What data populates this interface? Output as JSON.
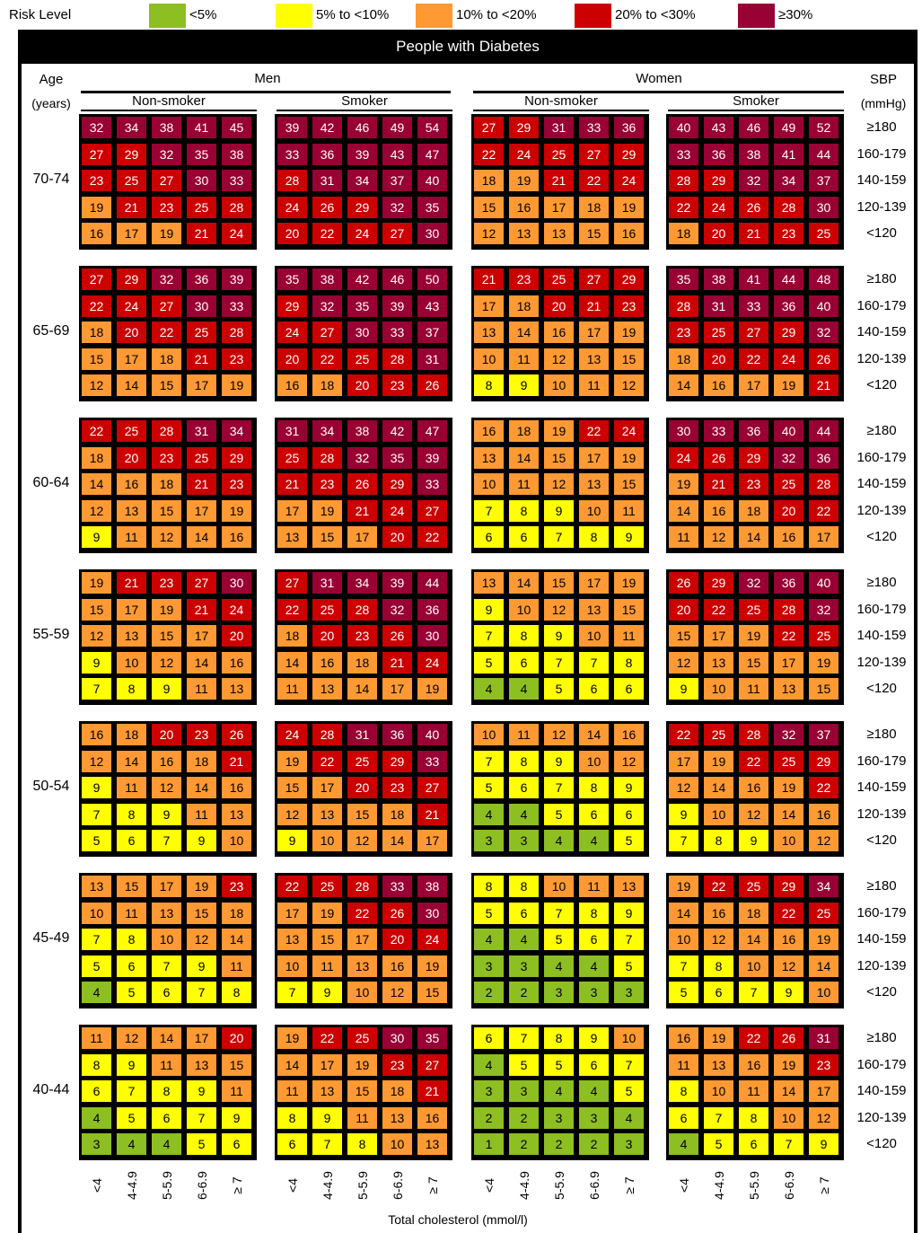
{
  "legend": {
    "label": "Risk Level",
    "items": [
      {
        "label": "<5%",
        "color": "#8DBE22"
      },
      {
        "label": "5% to <10%",
        "color": "#FFFF00"
      },
      {
        "label": "10% to <20%",
        "color": "#FF9933"
      },
      {
        "label": "20% to <30%",
        "color": "#CC0000"
      },
      {
        "label": "≥30%",
        "color": "#990033"
      }
    ]
  },
  "chart_data": {
    "type": "heatmap",
    "title": "People with Diabetes",
    "xlabel": "Total cholesterol (mmol/l)",
    "row_header": {
      "line1": "Age",
      "line2": "(years)"
    },
    "sbp_header": {
      "line1": "SBP",
      "line2": "(mmHg)"
    },
    "sexes": [
      "Men",
      "Women"
    ],
    "smoking": [
      "Non-smoker",
      "Smoker"
    ],
    "cholesterol_categories": [
      "<4",
      "4-4.9",
      "5-5.9",
      "6-6.9",
      "≥ 7"
    ],
    "sbp_categories": [
      "≥180",
      "160-179",
      "140-159",
      "120-139",
      "<120"
    ],
    "thresholds": [
      5,
      10,
      20,
      30
    ],
    "age_groups": [
      {
        "age": "70-74",
        "panels": [
          [
            [
              32,
              34,
              38,
              41,
              45
            ],
            [
              27,
              29,
              32,
              35,
              38
            ],
            [
              23,
              25,
              27,
              30,
              33
            ],
            [
              19,
              21,
              23,
              25,
              28
            ],
            [
              16,
              17,
              19,
              21,
              24
            ]
          ],
          [
            [
              39,
              42,
              46,
              49,
              54
            ],
            [
              33,
              36,
              39,
              43,
              47
            ],
            [
              28,
              31,
              34,
              37,
              40
            ],
            [
              24,
              26,
              29,
              32,
              35
            ],
            [
              20,
              22,
              24,
              27,
              30
            ]
          ],
          [
            [
              27,
              29,
              31,
              33,
              36
            ],
            [
              22,
              24,
              25,
              27,
              29
            ],
            [
              18,
              19,
              21,
              22,
              24
            ],
            [
              15,
              16,
              17,
              18,
              19
            ],
            [
              12,
              13,
              13,
              15,
              16
            ]
          ],
          [
            [
              40,
              43,
              46,
              49,
              52
            ],
            [
              33,
              36,
              38,
              41,
              44
            ],
            [
              28,
              29,
              32,
              34,
              37
            ],
            [
              22,
              24,
              26,
              28,
              30
            ],
            [
              18,
              20,
              21,
              23,
              25
            ]
          ]
        ]
      },
      {
        "age": "65-69",
        "panels": [
          [
            [
              27,
              29,
              32,
              36,
              39
            ],
            [
              22,
              24,
              27,
              30,
              33
            ],
            [
              18,
              20,
              22,
              25,
              28
            ],
            [
              15,
              17,
              18,
              21,
              23
            ],
            [
              12,
              14,
              15,
              17,
              19
            ]
          ],
          [
            [
              35,
              38,
              42,
              46,
              50
            ],
            [
              29,
              32,
              35,
              39,
              43
            ],
            [
              24,
              27,
              30,
              33,
              37
            ],
            [
              20,
              22,
              25,
              28,
              31
            ],
            [
              16,
              18,
              20,
              23,
              26
            ]
          ],
          [
            [
              21,
              23,
              25,
              27,
              29
            ],
            [
              17,
              18,
              20,
              21,
              23
            ],
            [
              13,
              14,
              16,
              17,
              19
            ],
            [
              10,
              11,
              12,
              13,
              15
            ],
            [
              8,
              9,
              10,
              11,
              12
            ]
          ],
          [
            [
              35,
              38,
              41,
              44,
              48
            ],
            [
              28,
              31,
              33,
              36,
              40
            ],
            [
              23,
              25,
              27,
              29,
              32
            ],
            [
              18,
              20,
              22,
              24,
              26
            ],
            [
              14,
              16,
              17,
              19,
              21
            ]
          ]
        ]
      },
      {
        "age": "60-64",
        "panels": [
          [
            [
              22,
              25,
              28,
              31,
              34
            ],
            [
              18,
              20,
              23,
              25,
              29
            ],
            [
              14,
              16,
              18,
              21,
              23
            ],
            [
              12,
              13,
              15,
              17,
              19
            ],
            [
              9,
              11,
              12,
              14,
              16
            ]
          ],
          [
            [
              31,
              34,
              38,
              42,
              47
            ],
            [
              25,
              28,
              32,
              35,
              39
            ],
            [
              21,
              23,
              26,
              29,
              33
            ],
            [
              17,
              19,
              21,
              24,
              27
            ],
            [
              13,
              15,
              17,
              20,
              22
            ]
          ],
          [
            [
              16,
              18,
              19,
              22,
              24
            ],
            [
              13,
              14,
              15,
              17,
              19
            ],
            [
              10,
              11,
              12,
              13,
              15
            ],
            [
              7,
              8,
              9,
              10,
              11
            ],
            [
              6,
              6,
              7,
              8,
              9
            ]
          ],
          [
            [
              30,
              33,
              36,
              40,
              44
            ],
            [
              24,
              26,
              29,
              32,
              36
            ],
            [
              19,
              21,
              23,
              25,
              28
            ],
            [
              14,
              16,
              18,
              20,
              22
            ],
            [
              11,
              12,
              14,
              16,
              17
            ]
          ]
        ]
      },
      {
        "age": "55-59",
        "panels": [
          [
            [
              19,
              21,
              23,
              27,
              30
            ],
            [
              15,
              17,
              19,
              21,
              24
            ],
            [
              12,
              13,
              15,
              17,
              20
            ],
            [
              9,
              10,
              12,
              14,
              16
            ],
            [
              7,
              8,
              9,
              11,
              13
            ]
          ],
          [
            [
              27,
              31,
              34,
              39,
              44
            ],
            [
              22,
              25,
              28,
              32,
              36
            ],
            [
              18,
              20,
              23,
              26,
              30
            ],
            [
              14,
              16,
              18,
              21,
              24
            ],
            [
              11,
              13,
              14,
              17,
              19
            ]
          ],
          [
            [
              13,
              14,
              15,
              17,
              19
            ],
            [
              9,
              10,
              12,
              13,
              15
            ],
            [
              7,
              8,
              9,
              10,
              11
            ],
            [
              5,
              6,
              7,
              7,
              8
            ],
            [
              4,
              4,
              5,
              6,
              6
            ]
          ],
          [
            [
              26,
              29,
              32,
              36,
              40
            ],
            [
              20,
              22,
              25,
              28,
              32
            ],
            [
              15,
              17,
              19,
              22,
              25
            ],
            [
              12,
              13,
              15,
              17,
              19
            ],
            [
              9,
              10,
              11,
              13,
              15
            ]
          ]
        ]
      },
      {
        "age": "50-54",
        "panels": [
          [
            [
              16,
              18,
              20,
              23,
              26
            ],
            [
              12,
              14,
              16,
              18,
              21
            ],
            [
              9,
              11,
              12,
              14,
              16
            ],
            [
              7,
              8,
              9,
              11,
              13
            ],
            [
              5,
              6,
              7,
              9,
              10
            ]
          ],
          [
            [
              24,
              28,
              31,
              36,
              40
            ],
            [
              19,
              22,
              25,
              29,
              33
            ],
            [
              15,
              17,
              20,
              23,
              27
            ],
            [
              12,
              13,
              15,
              18,
              21
            ],
            [
              9,
              10,
              12,
              14,
              17
            ]
          ],
          [
            [
              10,
              11,
              12,
              14,
              16
            ],
            [
              7,
              8,
              9,
              10,
              12
            ],
            [
              5,
              6,
              7,
              8,
              9
            ],
            [
              4,
              4,
              5,
              6,
              6
            ],
            [
              3,
              3,
              4,
              4,
              5
            ]
          ],
          [
            [
              22,
              25,
              28,
              32,
              37
            ],
            [
              17,
              19,
              22,
              25,
              29
            ],
            [
              12,
              14,
              16,
              19,
              22
            ],
            [
              9,
              10,
              12,
              14,
              16
            ],
            [
              7,
              8,
              9,
              10,
              12
            ]
          ]
        ]
      },
      {
        "age": "45-49",
        "panels": [
          [
            [
              13,
              15,
              17,
              19,
              23
            ],
            [
              10,
              11,
              13,
              15,
              18
            ],
            [
              7,
              8,
              10,
              12,
              14
            ],
            [
              5,
              6,
              7,
              9,
              11
            ],
            [
              4,
              5,
              6,
              7,
              8
            ]
          ],
          [
            [
              22,
              25,
              28,
              33,
              38
            ],
            [
              17,
              19,
              22,
              26,
              30
            ],
            [
              13,
              15,
              17,
              20,
              24
            ],
            [
              10,
              11,
              13,
              16,
              19
            ],
            [
              7,
              9,
              10,
              12,
              15
            ]
          ],
          [
            [
              8,
              8,
              10,
              11,
              13
            ],
            [
              5,
              6,
              7,
              8,
              9
            ],
            [
              4,
              4,
              5,
              6,
              7
            ],
            [
              3,
              3,
              4,
              4,
              5
            ],
            [
              2,
              2,
              3,
              3,
              3
            ]
          ],
          [
            [
              19,
              22,
              25,
              29,
              34
            ],
            [
              14,
              16,
              18,
              22,
              25
            ],
            [
              10,
              12,
              14,
              16,
              19
            ],
            [
              7,
              8,
              10,
              12,
              14
            ],
            [
              5,
              6,
              7,
              9,
              10
            ]
          ]
        ]
      },
      {
        "age": "40-44",
        "panels": [
          [
            [
              11,
              12,
              14,
              17,
              20
            ],
            [
              8,
              9,
              11,
              13,
              15
            ],
            [
              6,
              7,
              8,
              9,
              11
            ],
            [
              4,
              5,
              6,
              7,
              9
            ],
            [
              3,
              4,
              4,
              5,
              6
            ]
          ],
          [
            [
              19,
              22,
              25,
              30,
              35
            ],
            [
              14,
              17,
              19,
              23,
              27
            ],
            [
              11,
              13,
              15,
              18,
              21
            ],
            [
              8,
              9,
              11,
              13,
              16
            ],
            [
              6,
              7,
              8,
              10,
              13
            ]
          ],
          [
            [
              6,
              7,
              8,
              9,
              10
            ],
            [
              4,
              5,
              5,
              6,
              7
            ],
            [
              3,
              3,
              4,
              4,
              5
            ],
            [
              2,
              2,
              3,
              3,
              4
            ],
            [
              1,
              2,
              2,
              2,
              3
            ]
          ],
          [
            [
              16,
              19,
              22,
              26,
              31
            ],
            [
              11,
              13,
              16,
              19,
              23
            ],
            [
              8,
              10,
              11,
              14,
              17
            ],
            [
              6,
              7,
              8,
              10,
              12
            ],
            [
              4,
              5,
              6,
              7,
              9
            ]
          ]
        ]
      }
    ]
  }
}
